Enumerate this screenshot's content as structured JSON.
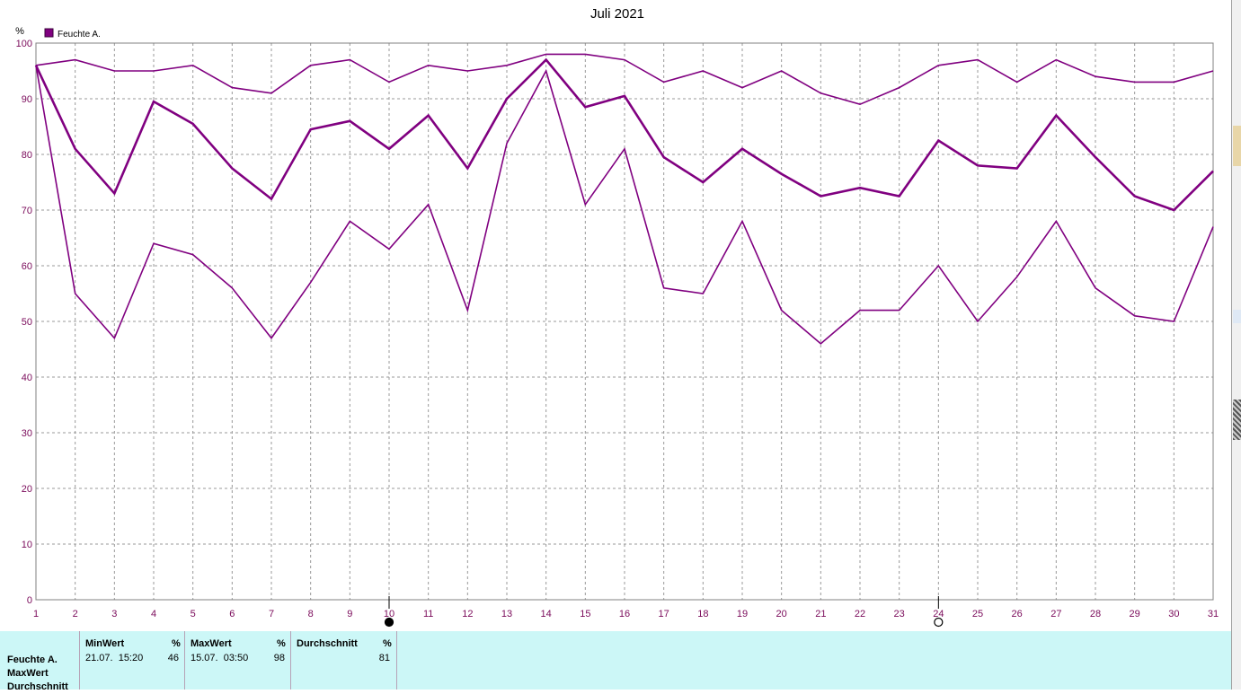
{
  "chart_data": {
    "type": "line",
    "title": "Juli 2021",
    "ylabel": "%",
    "ylim": [
      0,
      100
    ],
    "yticks": [
      0,
      10,
      20,
      30,
      40,
      50,
      60,
      70,
      80,
      90,
      100
    ],
    "x": [
      1,
      2,
      3,
      4,
      5,
      6,
      7,
      8,
      9,
      10,
      11,
      12,
      13,
      14,
      15,
      16,
      17,
      18,
      19,
      20,
      21,
      22,
      23,
      24,
      25,
      26,
      27,
      28,
      29,
      30,
      31
    ],
    "xlim": [
      1,
      31
    ],
    "grid": true,
    "legend": {
      "position": "top-left",
      "entries": [
        "Feuchte A."
      ]
    },
    "moon_markers": [
      {
        "day": 10,
        "phase": "full-moon"
      },
      {
        "day": 24,
        "phase": "new-moon"
      }
    ],
    "series": [
      {
        "role": "max",
        "values": [
          96,
          97,
          95,
          95,
          96,
          92,
          91,
          96,
          97,
          93,
          96,
          95,
          96,
          98,
          98,
          97,
          93,
          95,
          92,
          95,
          91,
          89,
          92,
          96,
          97,
          93,
          97,
          94,
          93,
          93,
          95
        ]
      },
      {
        "role": "avg",
        "values": [
          96,
          81,
          73,
          89.5,
          85.5,
          77.5,
          72,
          84.5,
          86,
          81,
          87,
          77.5,
          90,
          97,
          88.5,
          90.5,
          79.5,
          75,
          81,
          76.5,
          72.5,
          74,
          72.5,
          82.5,
          78,
          77.5,
          87,
          79.5,
          72.5,
          70,
          77
        ]
      },
      {
        "role": "min",
        "values": [
          96,
          55,
          47,
          64,
          62,
          56,
          47,
          57,
          68,
          63,
          71,
          52,
          82,
          95,
          71,
          81,
          56,
          55,
          68,
          52,
          46,
          52,
          52,
          60,
          50,
          58,
          68,
          56,
          51,
          50,
          67
        ]
      }
    ],
    "colors": {
      "series": "#800080",
      "tick_labels": "#7a0a5a",
      "grid": "#9a9a9a",
      "panel": "#ccf7f7"
    }
  },
  "stats_panel": {
    "row_labels": [
      "Feuchte A.",
      "MaxWert",
      "Durchschnitt"
    ],
    "columns": [
      {
        "header": "MinWert",
        "unit": "%",
        "when": "21.07.  15:20",
        "value": "46"
      },
      {
        "header": "MaxWert",
        "unit": "%",
        "when": "15.07.  03:50",
        "value": "98"
      },
      {
        "header": "Durchschnitt",
        "unit": "%",
        "when": "",
        "value": "81"
      }
    ]
  }
}
